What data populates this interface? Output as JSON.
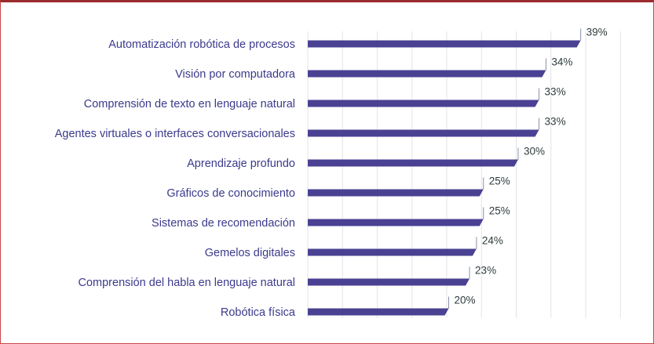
{
  "chart_data": {
    "type": "bar",
    "orientation": "horizontal",
    "categories": [
      "Automatización robótica de procesos",
      "Visión por computadora",
      "Comprensión de texto en lenguaje natural",
      "Agentes virtuales o interfaces conversacionales",
      "Aprendizaje profundo",
      "Gráficos de conocimiento",
      "Sistemas de recomendación",
      "Gemelos digitales",
      "Comprensión del habla en lenguaje natural",
      "Robótica física"
    ],
    "values": [
      39,
      34,
      33,
      33,
      30,
      25,
      25,
      24,
      23,
      20
    ],
    "value_labels": [
      "39%",
      "34%",
      "33%",
      "33%",
      "30%",
      "25%",
      "25%",
      "24%",
      "23%",
      "20%"
    ],
    "xlim": [
      0,
      50
    ],
    "grid": true,
    "bar_color": "#4a4193",
    "label_color": "#3b3a8c",
    "value_color": "#2f3b3c",
    "border_color": "#9b2a2e"
  }
}
